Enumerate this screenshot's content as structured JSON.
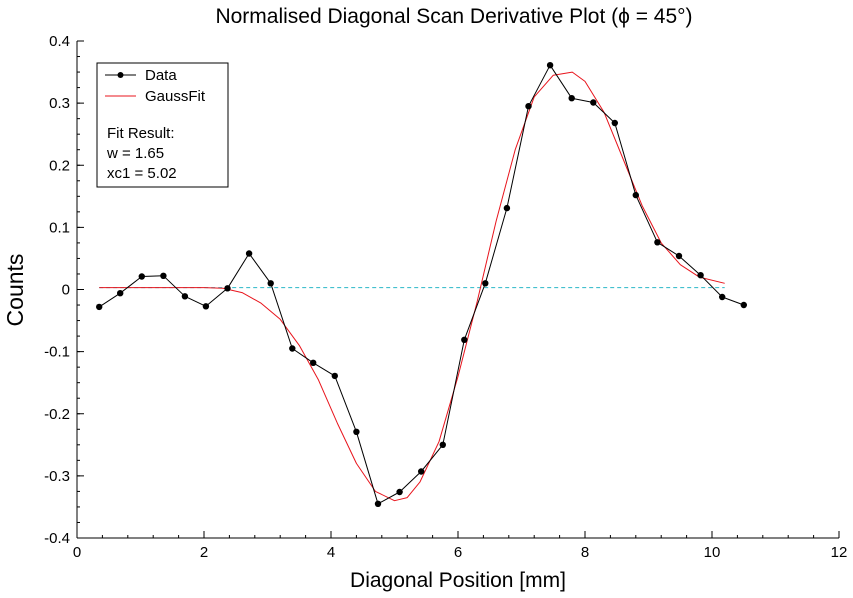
{
  "chart_data": {
    "type": "line",
    "title": "Normalised Diagonal Scan Derivative Plot (ϕ = 45°)",
    "xlabel": "Diagonal Position [mm]",
    "ylabel": "Counts",
    "xlim": [
      0,
      12
    ],
    "ylim": [
      -0.4,
      0.4
    ],
    "x_ticks": [
      0,
      2,
      4,
      6,
      8,
      10,
      12
    ],
    "y_ticks": [
      -0.4,
      -0.3,
      -0.2,
      -0.1,
      0,
      0.1,
      0.2,
      0.3,
      0.4
    ],
    "x_tick_labels": [
      "0",
      "2",
      "4",
      "6",
      "8",
      "10",
      "12"
    ],
    "y_tick_labels": [
      "-0.4",
      "-0.3",
      "-0.2",
      "-0.1",
      "0",
      "0.1",
      "0.2",
      "0.3",
      "0.4"
    ],
    "grid": false,
    "legend_position": "top-left",
    "series": [
      {
        "name": "Data",
        "color": "#000000",
        "marker": "circle",
        "x": [
          0.35,
          0.68,
          1.02,
          1.36,
          1.7,
          2.03,
          2.37,
          2.71,
          3.05,
          3.39,
          3.72,
          4.06,
          4.4,
          4.74,
          5.08,
          5.42,
          5.76,
          6.1,
          6.43,
          6.77,
          7.11,
          7.45,
          7.79,
          8.13,
          8.47,
          8.8,
          9.14,
          9.48,
          9.82,
          10.16,
          10.5
        ],
        "y": [
          -0.028,
          -0.006,
          0.021,
          0.022,
          -0.011,
          -0.027,
          0.002,
          0.058,
          0.01,
          -0.095,
          -0.118,
          -0.139,
          -0.229,
          -0.345,
          -0.326,
          -0.293,
          -0.25,
          -0.081,
          0.01,
          0.131,
          0.295,
          0.361,
          0.308,
          0.301,
          0.268,
          0.152,
          0.076,
          0.054,
          0.023,
          -0.012,
          -0.025
        ]
      },
      {
        "name": "GaussFit",
        "color": "#e8141c",
        "x": [
          0.35,
          1.0,
          1.5,
          2.0,
          2.3,
          2.6,
          2.9,
          3.2,
          3.5,
          3.8,
          4.1,
          4.4,
          4.7,
          5.0,
          5.2,
          5.4,
          5.7,
          6.0,
          6.3,
          6.6,
          6.9,
          7.2,
          7.5,
          7.8,
          8.0,
          8.3,
          8.6,
          8.9,
          9.2,
          9.5,
          9.8,
          10.2
        ],
        "y": [
          0.003,
          0.003,
          0.003,
          0.003,
          0.002,
          -0.005,
          -0.022,
          -0.048,
          -0.09,
          -0.145,
          -0.215,
          -0.28,
          -0.325,
          -0.34,
          -0.335,
          -0.31,
          -0.245,
          -0.14,
          -0.02,
          0.11,
          0.225,
          0.31,
          0.345,
          0.35,
          0.335,
          0.285,
          0.21,
          0.135,
          0.075,
          0.04,
          0.02,
          0.01
        ]
      },
      {
        "name": "",
        "color": "#2ab8c8",
        "dashed": true,
        "x": [
          0.35,
          10.2
        ],
        "y": [
          0.003,
          0.003
        ]
      }
    ],
    "annotation": {
      "heading": "Fit Result:",
      "lines": [
        "w = 1.65",
        "xc1 = 5.02"
      ]
    }
  }
}
